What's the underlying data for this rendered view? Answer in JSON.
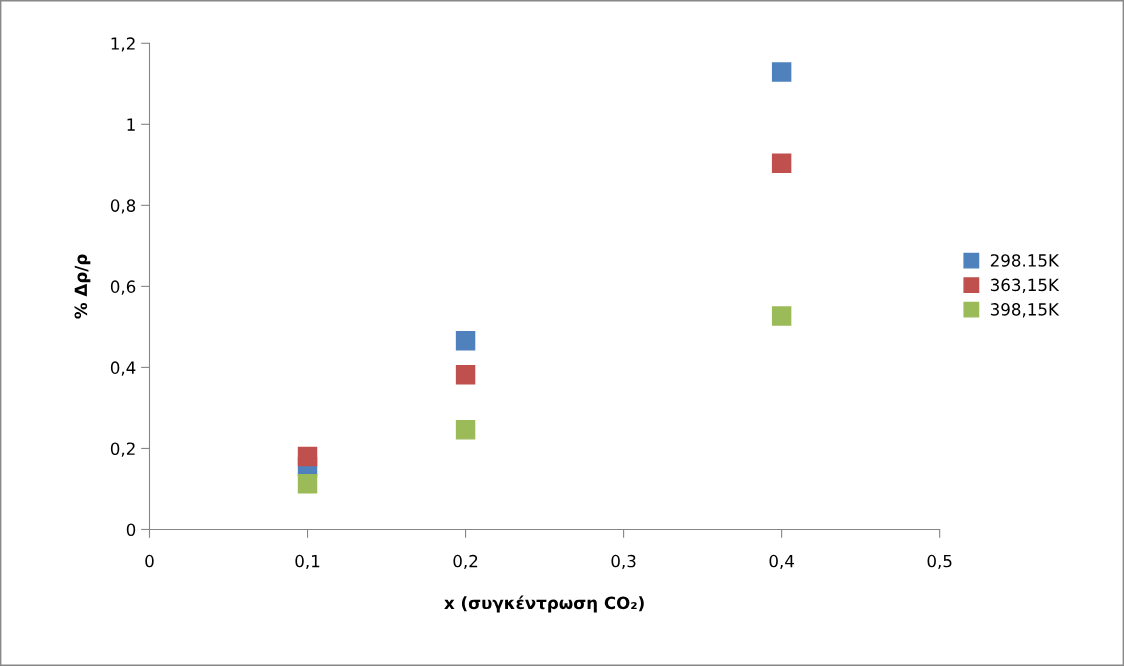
{
  "chart_data": {
    "type": "scatter",
    "xlabel": "x (συγκέντρωση CO₂)",
    "ylabel": "% Δρ/ρ",
    "xlim": [
      0,
      0.5
    ],
    "ylim": [
      0,
      1.2
    ],
    "xticks": [
      0,
      {
        "value": 0.1,
        "label": "0,1"
      },
      {
        "value": 0.2,
        "label": "0,2"
      },
      {
        "value": 0.3,
        "label": "0,3"
      },
      {
        "value": 0.4,
        "label": "0,4"
      },
      {
        "value": 0.5,
        "label": "0,5"
      }
    ],
    "yticks": [
      0,
      {
        "value": 0.2,
        "label": "0,2"
      },
      {
        "value": 0.4,
        "label": "0,4"
      },
      {
        "value": 0.6,
        "label": "0,6"
      },
      {
        "value": 0.8,
        "label": "0,8"
      },
      1,
      {
        "value": 1.2,
        "label": "1,2"
      }
    ],
    "x": [
      0.1,
      0.2,
      0.4
    ],
    "series": [
      {
        "name": "298.15K",
        "color": "#4f81bd",
        "values": [
          0.155,
          0.466,
          1.129
        ]
      },
      {
        "name": "363,15K",
        "color": "#c0504d",
        "values": [
          0.18,
          0.382,
          0.904
        ]
      },
      {
        "name": "398,15K",
        "color": "#9bbb59",
        "values": [
          0.113,
          0.246,
          0.527
        ]
      }
    ],
    "marker": "square",
    "legend": "right",
    "grid": false
  }
}
